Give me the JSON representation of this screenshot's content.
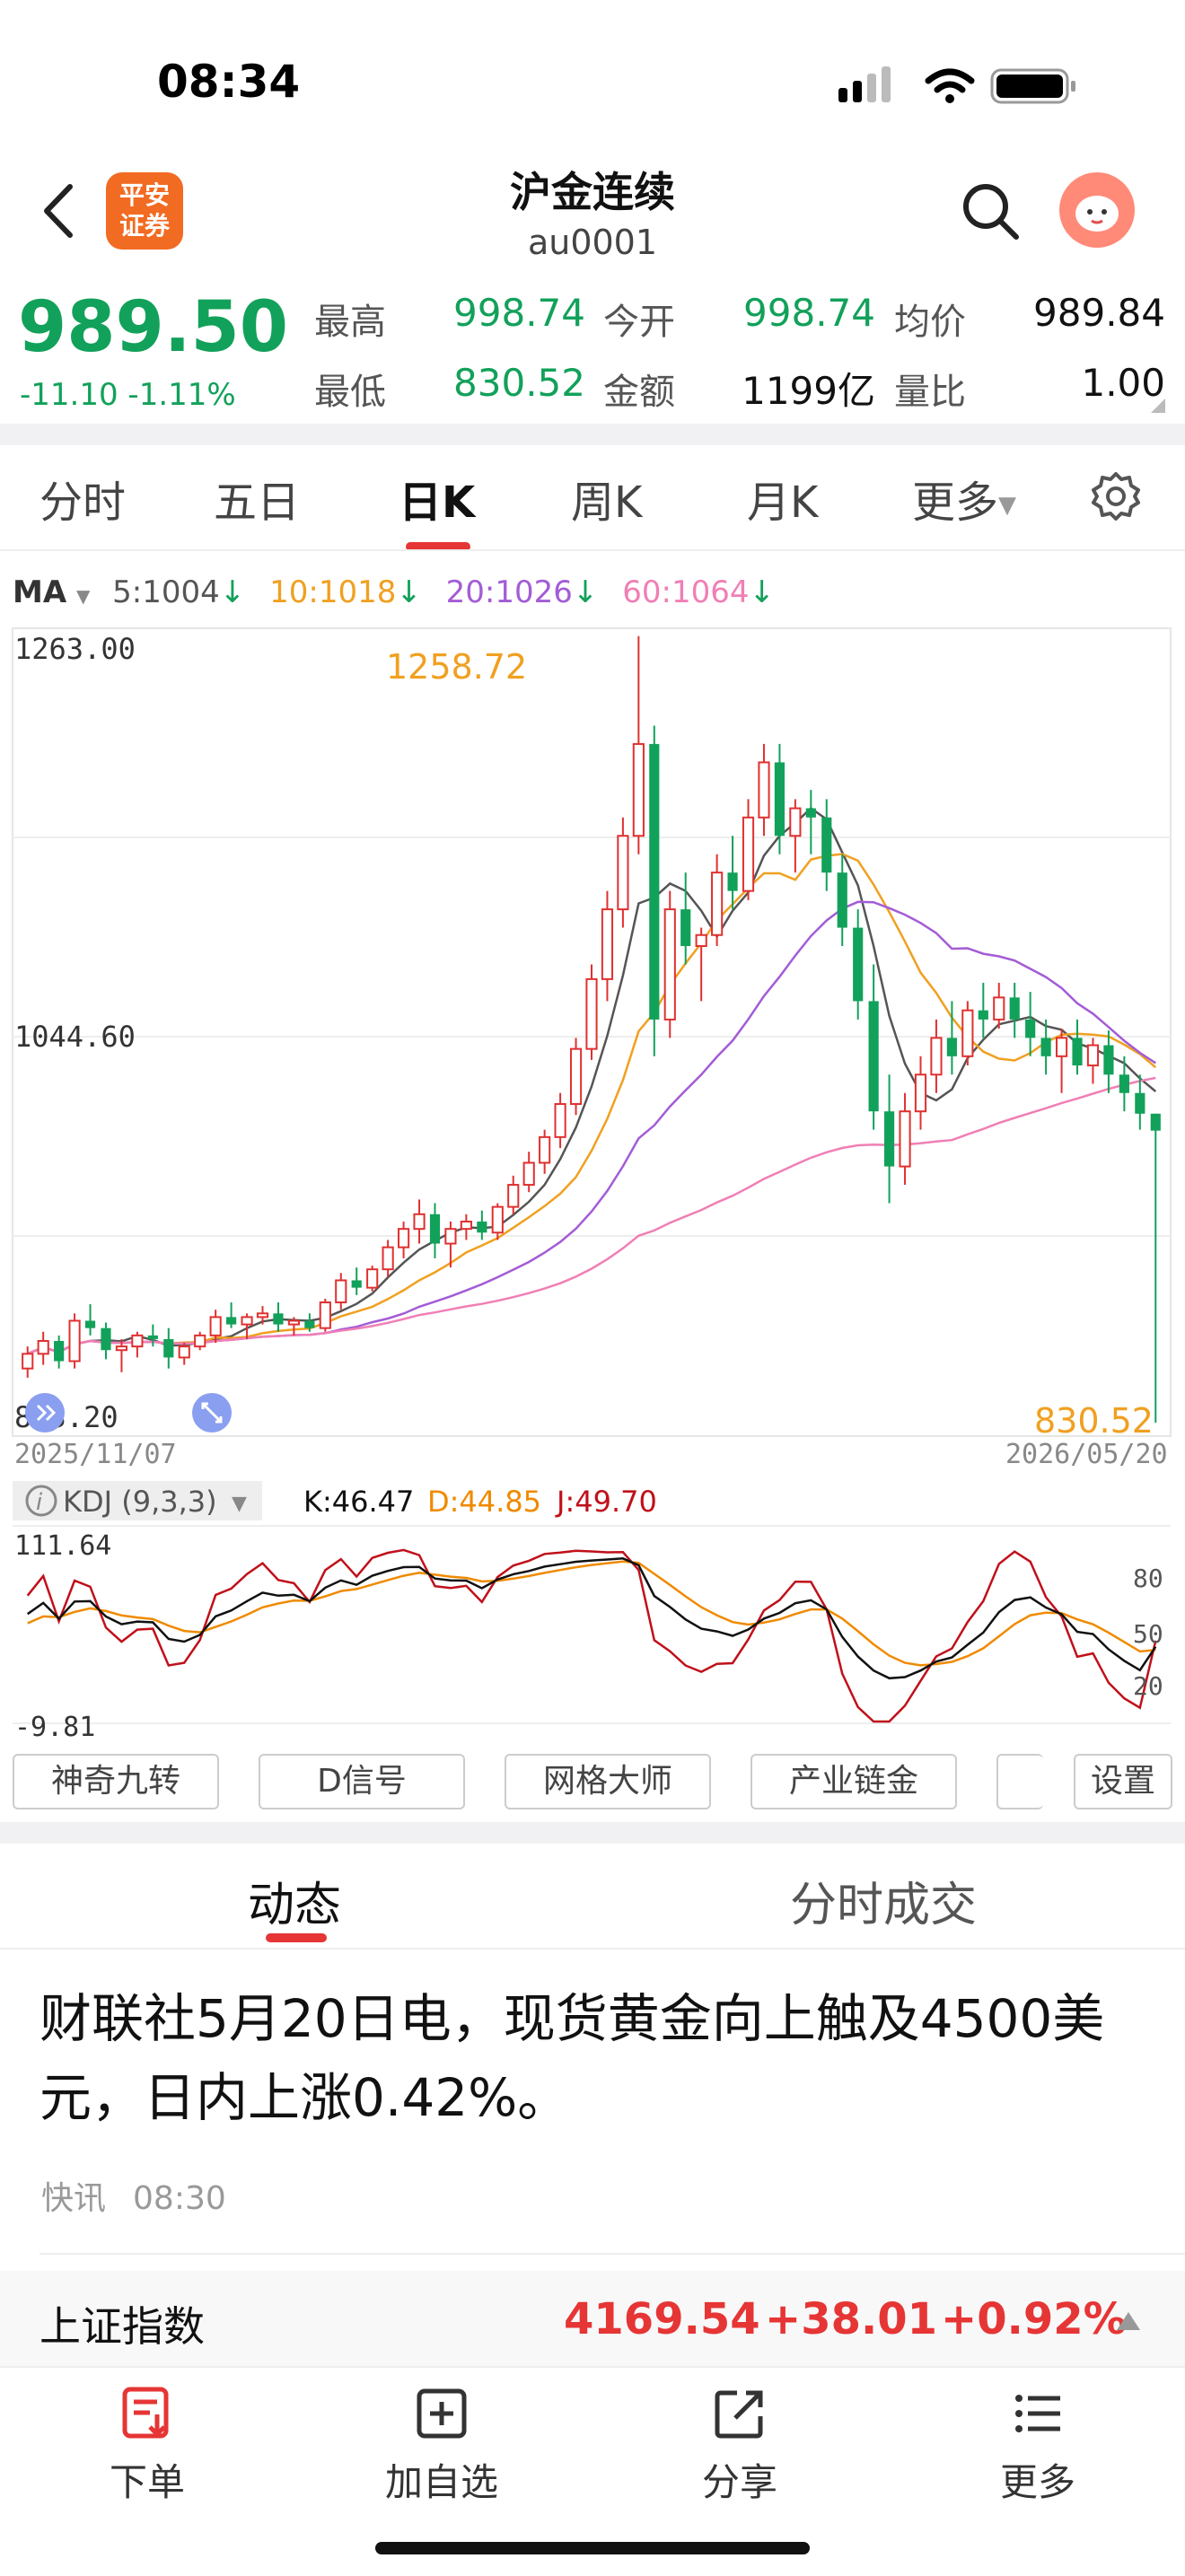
{
  "status_bar": {
    "time": "08:34"
  },
  "header": {
    "logo_text_1": "平安",
    "logo_text_2": "证券",
    "title": "沪金连续",
    "code": "au0001"
  },
  "quote": {
    "price": "989.50",
    "change": "-11.10",
    "change_pct": "-1.11%",
    "fields": {
      "high_label": "最高",
      "high": "998.74",
      "open_label": "今开",
      "open": "998.74",
      "avg_label": "均价",
      "avg": "989.84",
      "low_label": "最低",
      "low": "830.52",
      "amount_label": "金额",
      "amount": "1199亿",
      "vol_ratio_label": "量比",
      "vol_ratio": "1.00"
    }
  },
  "tabs": [
    "分时",
    "五日",
    "日K",
    "周K",
    "月K",
    "更多"
  ],
  "active_tab": "日K",
  "ma": {
    "label": "MA",
    "items": [
      {
        "text": "5:1004",
        "color": "#555555"
      },
      {
        "text": "10:1018",
        "color": "#f0a020"
      },
      {
        "text": "20:1026",
        "color": "#a35cd6"
      },
      {
        "text": "60:1064",
        "color": "#f07fb5"
      }
    ]
  },
  "kchart": {
    "y_top": "1263.00",
    "y_mid": "1044.60",
    "y_bottom": "823.20",
    "max_label": "1258.72",
    "min_label": "830.52",
    "date_start": "2025/11/07",
    "date_end": "2026/05/20",
    "up_color": "#e03030",
    "down_color": "#12a15a"
  },
  "kdj": {
    "label": "KDJ (9,3,3)",
    "k": "K:46.47",
    "d": "D:44.85",
    "j": "J:49.70",
    "y_top": "111.64",
    "y_bottom": "-9.81",
    "levels": [
      "80",
      "50",
      "20"
    ]
  },
  "tools": [
    "神奇九转",
    "D信号",
    "网格大师",
    "产业链金",
    "设置"
  ],
  "news": {
    "tabs": [
      "动态",
      "分时成交"
    ],
    "text": "财联社5月20日电，现货黄金向上触及4500美元，日内上涨0.42%。",
    "source": "快讯",
    "time": "08:30"
  },
  "index_ticker": {
    "name": "上证指数",
    "value": "4169.54",
    "change": "+38.01",
    "pct": "+0.92%"
  },
  "bottom_nav": [
    "下单",
    "加自选",
    "分享",
    "更多"
  ],
  "chart_data": {
    "type": "candlestick",
    "title": "沪金连续 日K",
    "x_range": [
      "2025/11/07",
      "2026/05/20"
    ],
    "ylim": [
      823.2,
      1263.0
    ],
    "ohlc": [
      [
        860,
        872,
        855,
        868
      ],
      [
        868,
        880,
        862,
        875
      ],
      [
        875,
        878,
        860,
        864
      ],
      [
        864,
        890,
        860,
        886
      ],
      [
        886,
        895,
        878,
        882
      ],
      [
        882,
        885,
        865,
        870
      ],
      [
        870,
        876,
        858,
        872
      ],
      [
        872,
        880,
        866,
        878
      ],
      [
        878,
        884,
        872,
        876
      ],
      [
        876,
        882,
        860,
        866
      ],
      [
        866,
        874,
        862,
        872
      ],
      [
        872,
        880,
        870,
        878
      ],
      [
        878,
        892,
        874,
        888
      ],
      [
        888,
        896,
        882,
        884
      ],
      [
        884,
        890,
        876,
        888
      ],
      [
        888,
        894,
        884,
        890
      ],
      [
        890,
        896,
        880,
        884
      ],
      [
        884,
        888,
        878,
        886
      ],
      [
        886,
        890,
        880,
        882
      ],
      [
        882,
        898,
        880,
        896
      ],
      [
        896,
        912,
        892,
        908
      ],
      [
        908,
        915,
        900,
        904
      ],
      [
        904,
        916,
        902,
        914
      ],
      [
        914,
        930,
        910,
        926
      ],
      [
        926,
        940,
        920,
        936
      ],
      [
        936,
        952,
        928,
        944
      ],
      [
        944,
        950,
        920,
        928
      ],
      [
        928,
        940,
        915,
        936
      ],
      [
        936,
        944,
        930,
        940
      ],
      [
        940,
        946,
        930,
        934
      ],
      [
        934,
        950,
        930,
        948
      ],
      [
        948,
        965,
        944,
        960
      ],
      [
        960,
        978,
        956,
        972
      ],
      [
        972,
        990,
        966,
        986
      ],
      [
        986,
        1010,
        980,
        1004
      ],
      [
        1004,
        1040,
        998,
        1034
      ],
      [
        1034,
        1080,
        1028,
        1072
      ],
      [
        1072,
        1120,
        1060,
        1110
      ],
      [
        1110,
        1160,
        1100,
        1150
      ],
      [
        1150,
        1258.72,
        1140,
        1200
      ],
      [
        1200,
        1210,
        1030,
        1050
      ],
      [
        1050,
        1120,
        1040,
        1110
      ],
      [
        1110,
        1130,
        1080,
        1090
      ],
      [
        1090,
        1100,
        1060,
        1096
      ],
      [
        1096,
        1140,
        1090,
        1130
      ],
      [
        1130,
        1150,
        1110,
        1120
      ],
      [
        1120,
        1170,
        1115,
        1160
      ],
      [
        1160,
        1200,
        1150,
        1190
      ],
      [
        1190,
        1200,
        1140,
        1150
      ],
      [
        1150,
        1170,
        1130,
        1165
      ],
      [
        1165,
        1175,
        1140,
        1160
      ],
      [
        1160,
        1170,
        1120,
        1130
      ],
      [
        1130,
        1140,
        1090,
        1100
      ],
      [
        1100,
        1110,
        1050,
        1060
      ],
      [
        1060,
        1080,
        990,
        1000
      ],
      [
        1000,
        1020,
        950,
        970
      ],
      [
        970,
        1010,
        960,
        1000
      ],
      [
        1000,
        1030,
        990,
        1020
      ],
      [
        1020,
        1050,
        1010,
        1040
      ],
      [
        1040,
        1060,
        1020,
        1030
      ],
      [
        1030,
        1060,
        1025,
        1055
      ],
      [
        1055,
        1070,
        1040,
        1050
      ],
      [
        1050,
        1070,
        1045,
        1062
      ],
      [
        1062,
        1070,
        1040,
        1050
      ],
      [
        1050,
        1065,
        1030,
        1040
      ],
      [
        1040,
        1050,
        1020,
        1030
      ],
      [
        1030,
        1045,
        1010,
        1040
      ],
      [
        1040,
        1050,
        1020,
        1025
      ],
      [
        1025,
        1040,
        1015,
        1036
      ],
      [
        1036,
        1044,
        1010,
        1020
      ],
      [
        1020,
        1030,
        1000,
        1010
      ],
      [
        1010,
        1020,
        990,
        998.74
      ],
      [
        998.74,
        998.74,
        830.52,
        989.5
      ]
    ]
  }
}
